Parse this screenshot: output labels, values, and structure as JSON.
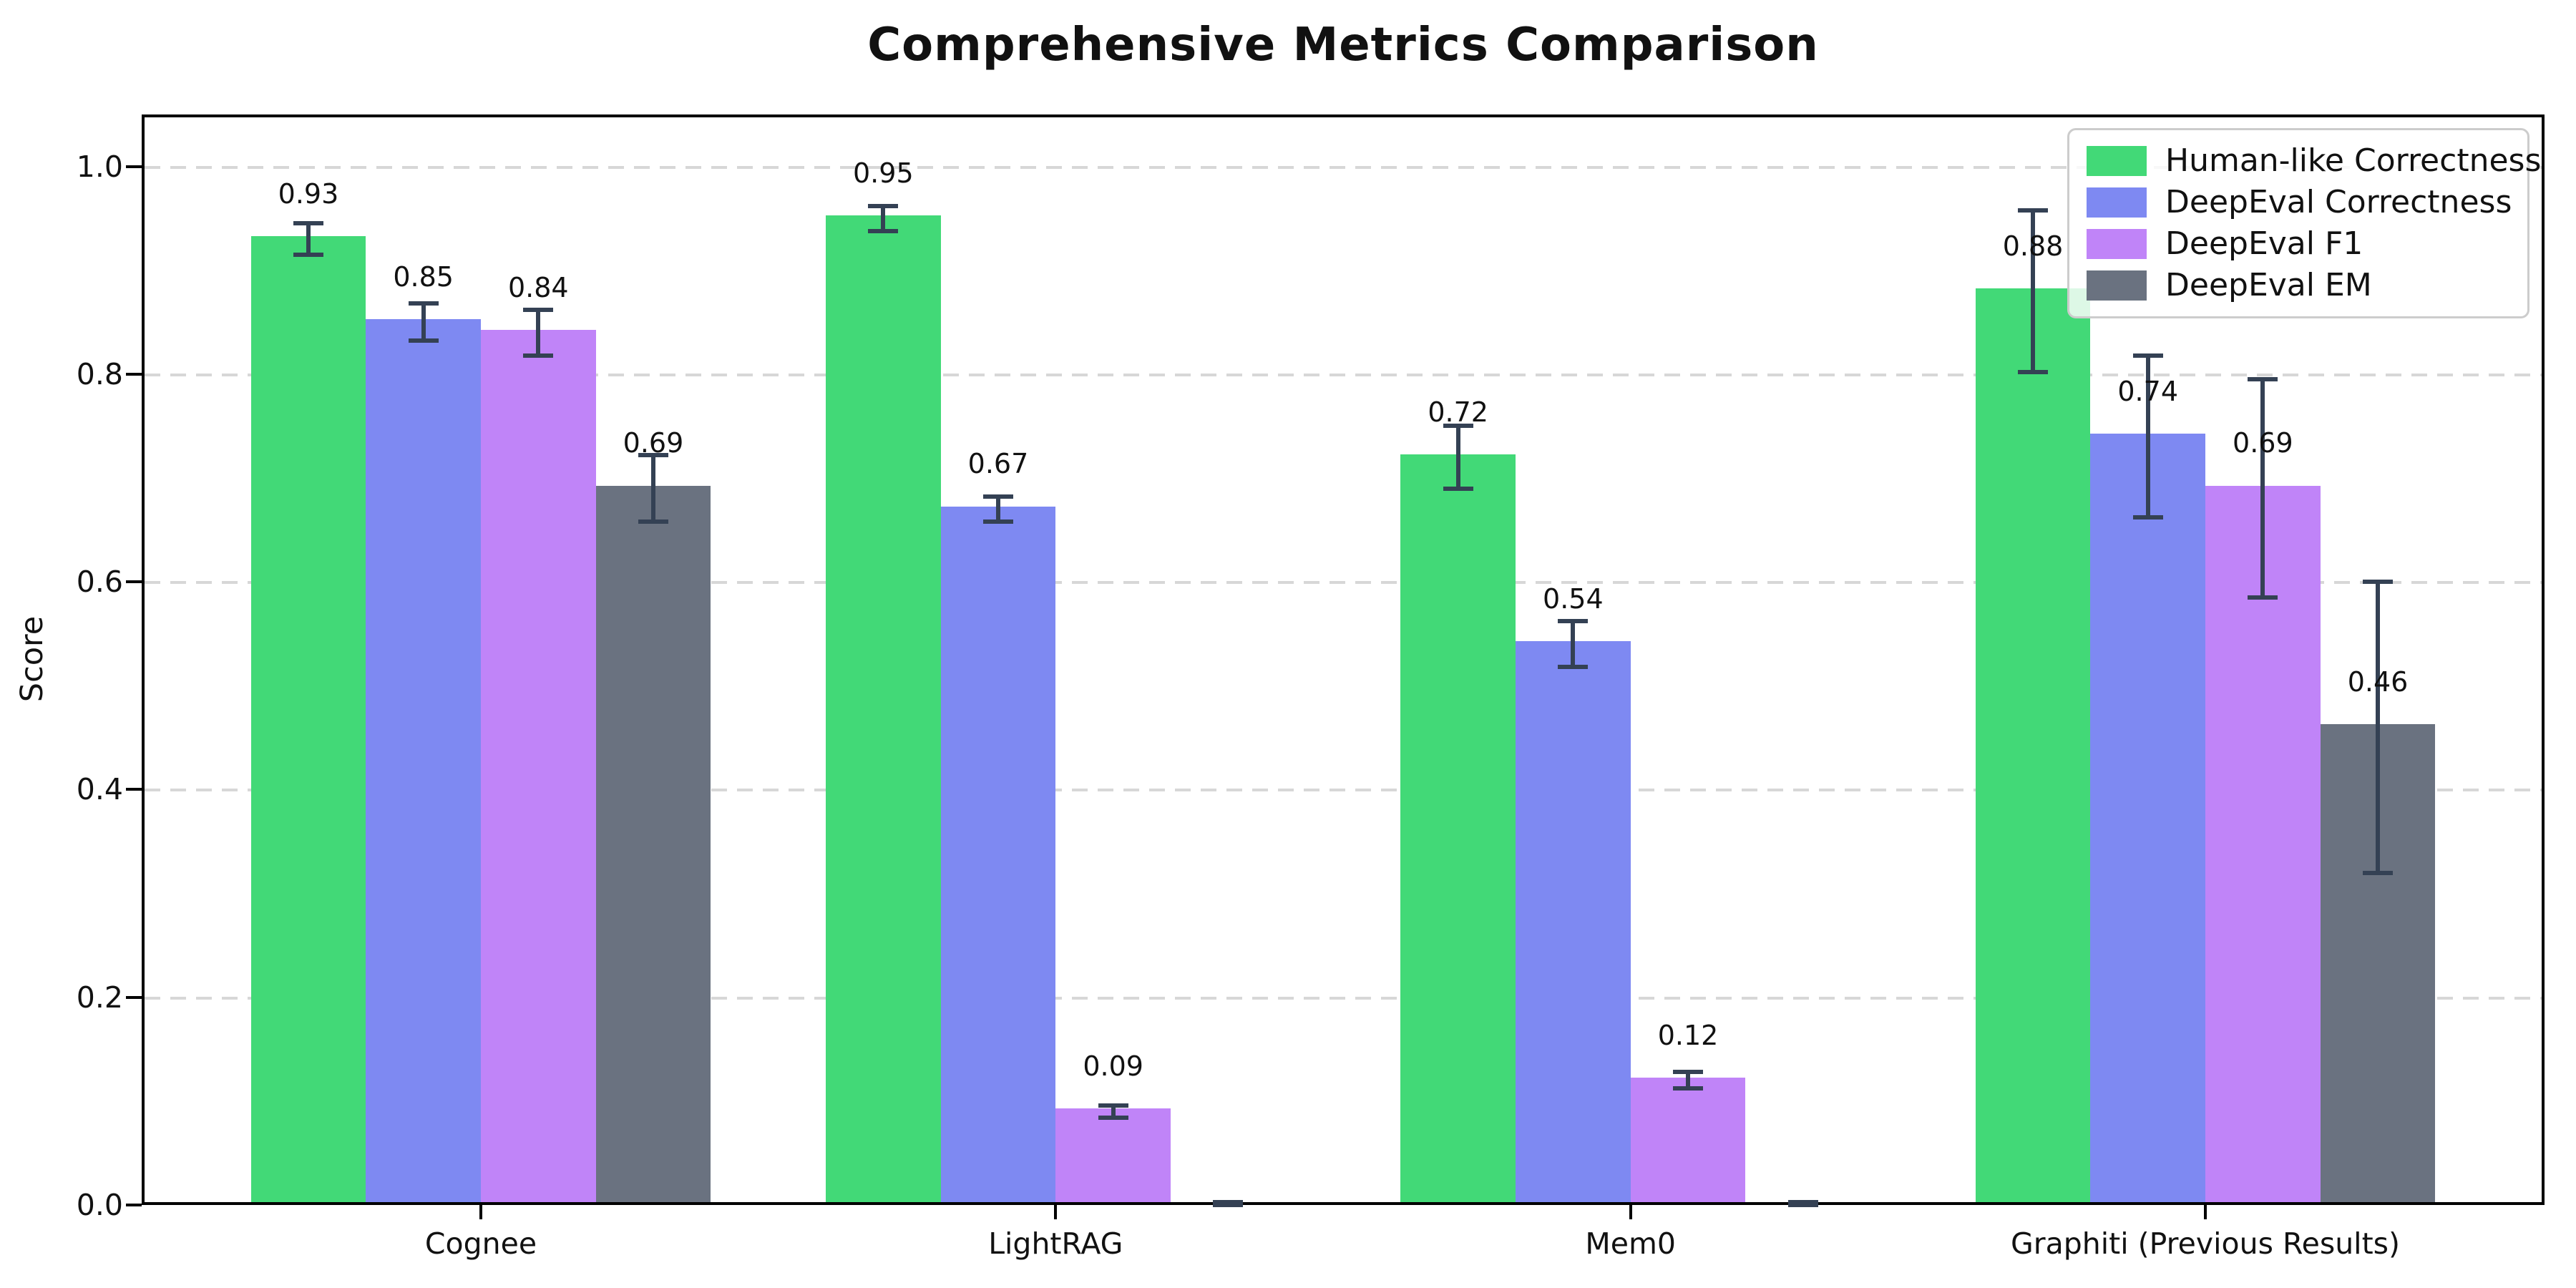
{
  "chart_data": {
    "type": "bar",
    "title": "Comprehensive Metrics Comparison",
    "ylabel": "Score",
    "xlabel": "",
    "categories": [
      "Cognee",
      "LightRAG",
      "Mem0",
      "Graphiti (Previous Results)"
    ],
    "series": [
      {
        "name": "Human-like Correctness",
        "color": "#42d977",
        "values": [
          0.93,
          0.95,
          0.72,
          0.88
        ],
        "errors": [
          0.015,
          0.012,
          0.03,
          0.078
        ],
        "labels": [
          "0.93",
          "0.95",
          "0.72",
          "0.88"
        ]
      },
      {
        "name": "DeepEval Correctness",
        "color": "#7e89f2",
        "values": [
          0.85,
          0.67,
          0.54,
          0.74
        ],
        "errors": [
          0.018,
          0.012,
          0.022,
          0.078
        ],
        "labels": [
          "0.85",
          "0.67",
          "0.54",
          "0.74"
        ]
      },
      {
        "name": "DeepEval F1",
        "color": "#c084f8",
        "values": [
          0.84,
          0.09,
          0.12,
          0.69
        ],
        "errors": [
          0.022,
          0.006,
          0.008,
          0.105
        ],
        "labels": [
          "0.84",
          "0.09",
          "0.12",
          "0.69"
        ]
      },
      {
        "name": "DeepEval EM",
        "color": "#6a7280",
        "values": [
          0.69,
          0.0,
          0.0,
          0.46
        ],
        "errors": [
          0.032,
          0.003,
          0.003,
          0.14
        ],
        "labels": [
          "0.69",
          "",
          "",
          "0.46"
        ]
      }
    ],
    "yticks": [
      0.0,
      0.2,
      0.4,
      0.6,
      0.8,
      1.0
    ],
    "ytick_labels": [
      "0.0",
      "0.2",
      "0.4",
      "0.6",
      "0.8",
      "1.0"
    ],
    "ylim": [
      0,
      1.05
    ],
    "grid": "horizontal-dashed",
    "legend_position": "upper-right",
    "error_bar_color": "#344154"
  }
}
